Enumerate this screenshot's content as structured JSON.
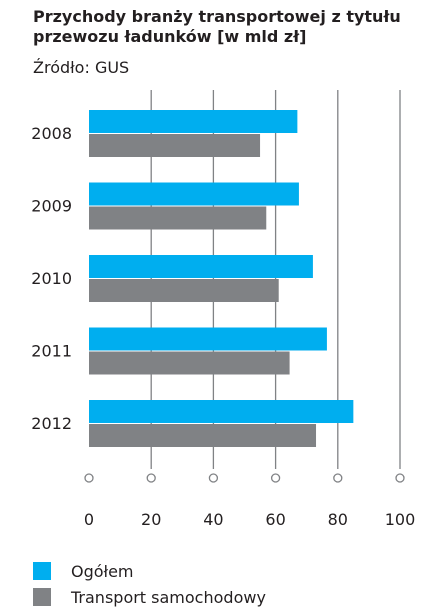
{
  "header": {
    "title": "Przychody branży transportowej z tytułu przewozu ładunków [w mld zł]",
    "source": "Źródło: GUS"
  },
  "chart_data": {
    "type": "bar",
    "orientation": "horizontal",
    "categories": [
      "2008",
      "2009",
      "2010",
      "2011",
      "2012"
    ],
    "series": [
      {
        "name": "Ogółem",
        "color": "#00aeef",
        "values": [
          67,
          67.5,
          72,
          76.5,
          85
        ]
      },
      {
        "name": "Transport samochodowy",
        "color": "#808285",
        "values": [
          55,
          57,
          61,
          64.5,
          73
        ]
      }
    ],
    "xlim": [
      0,
      100
    ],
    "xticks": [
      0,
      20,
      40,
      60,
      80,
      100
    ],
    "grid": true,
    "legend_position": "bottom-left"
  }
}
